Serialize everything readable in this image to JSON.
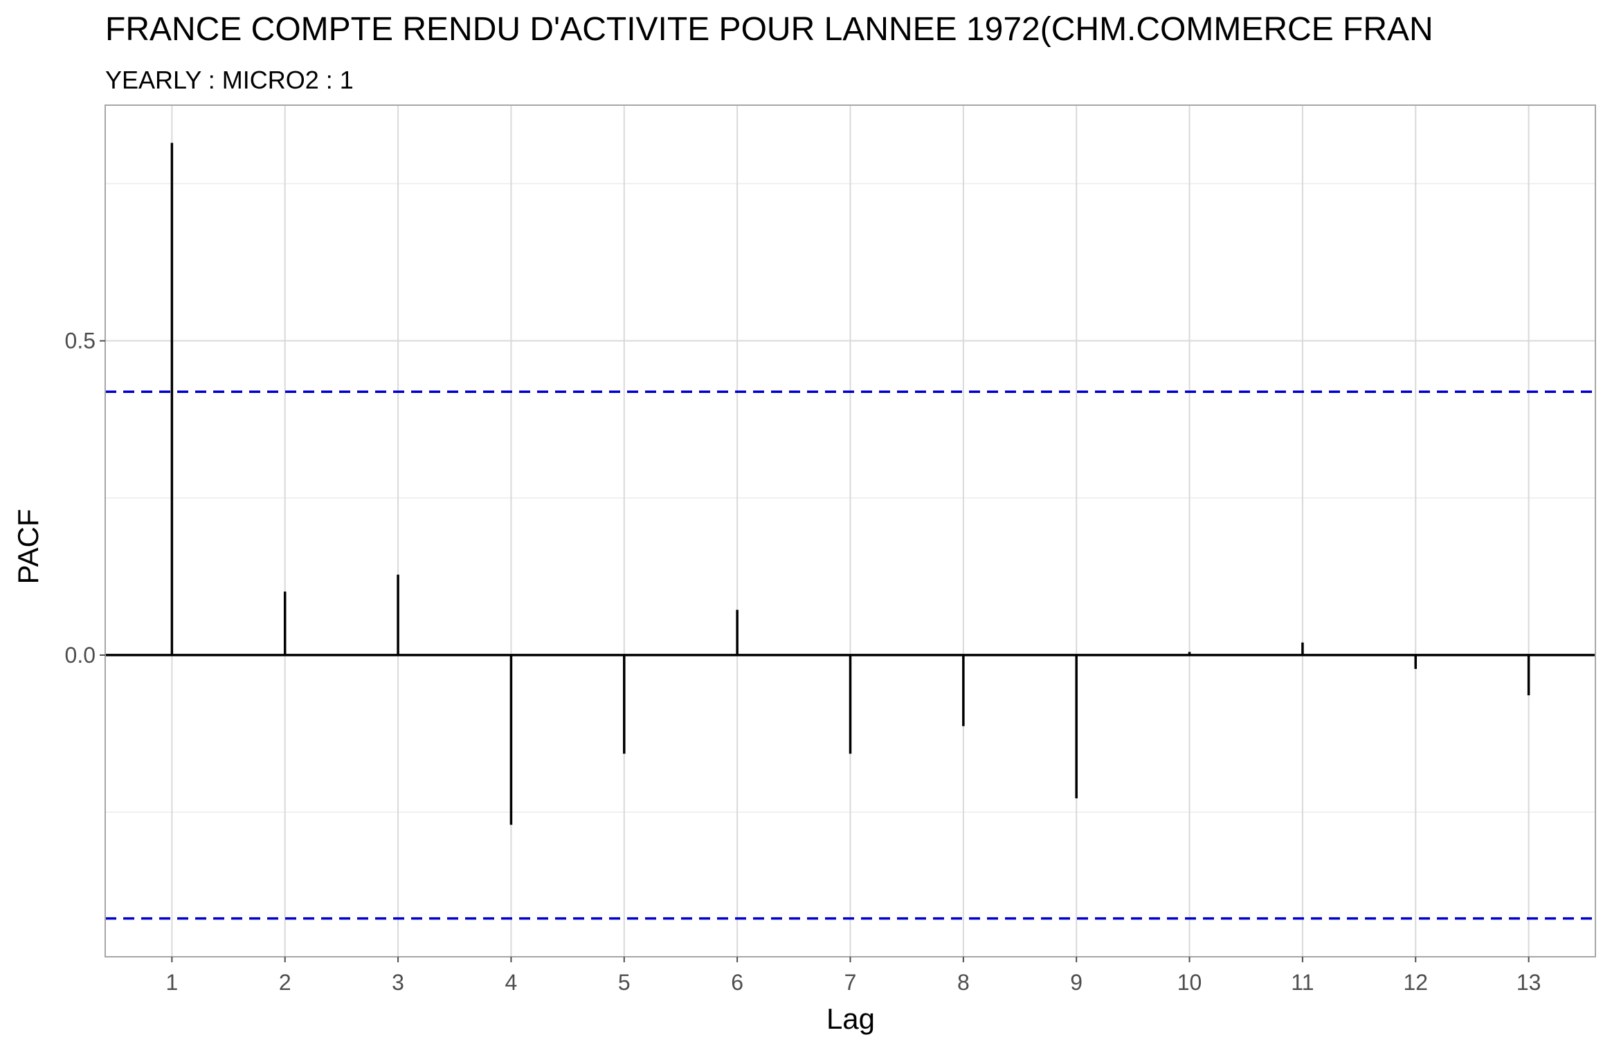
{
  "chart_data": {
    "type": "bar",
    "title": "FRANCE COMPTE RENDU D'ACTIVITE POUR LANNEE 1972(CHM.COMMERCE FRAN",
    "subtitle": "YEARLY : MICRO2 : 1",
    "xlabel": "Lag",
    "ylabel": "PACF",
    "x": [
      1,
      2,
      3,
      4,
      5,
      6,
      7,
      8,
      9,
      10,
      11,
      12,
      13
    ],
    "values": [
      0.815,
      0.101,
      0.128,
      -0.27,
      -0.157,
      0.072,
      -0.157,
      -0.113,
      -0.228,
      0.005,
      0.02,
      -0.022,
      -0.064
    ],
    "xlim": [
      0.41,
      13.59
    ],
    "ylim": [
      -0.48,
      0.875
    ],
    "y_ticks": [
      0.0,
      0.5
    ],
    "y_tick_labels": [
      "0.0",
      "0.5"
    ],
    "x_tick_labels": [
      "1",
      "2",
      "3",
      "4",
      "5",
      "6",
      "7",
      "8",
      "9",
      "10",
      "11",
      "12",
      "13"
    ],
    "confidence_bounds": [
      0.419,
      -0.419
    ],
    "grid": true,
    "colors": {
      "spike": "#000000",
      "confidence_line": "#0000cc",
      "grid_major": "#d9d9d9",
      "grid_minor": "#ebebeb",
      "panel_border": "#a6a6a6",
      "text": "#000000",
      "axis_text": "#4d4d4d"
    }
  }
}
